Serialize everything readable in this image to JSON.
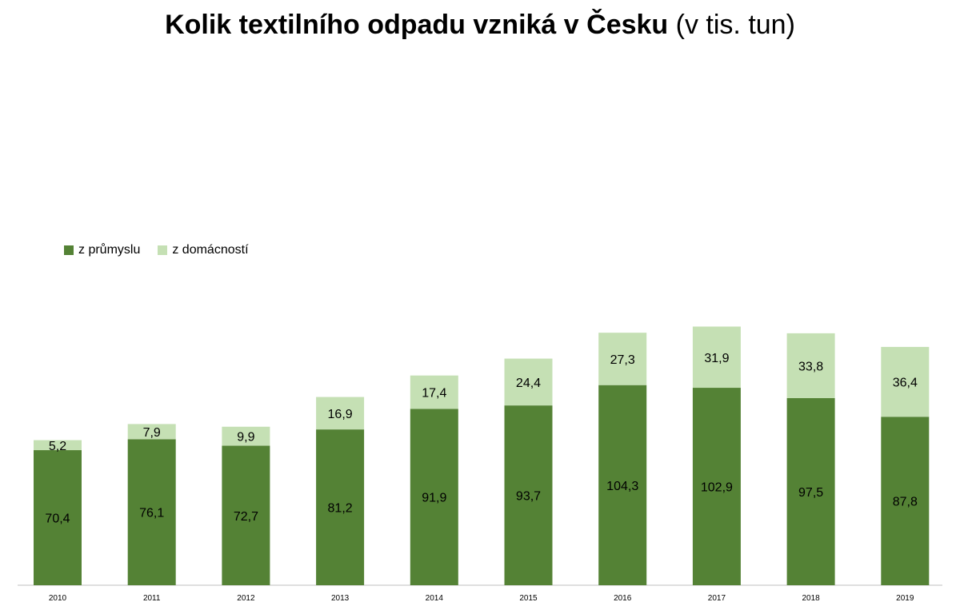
{
  "title_main": "Kolik textilního odpadu vzniká v Česku",
  "title_unit": "(v tis. tun)",
  "colors": {
    "industry": "#548235",
    "households": "#c5e0b4",
    "axis": "#bfbfbf"
  },
  "chart_data": {
    "type": "bar",
    "stacked": true,
    "categories": [
      "2010",
      "2011",
      "2012",
      "2013",
      "2014",
      "2015",
      "2016",
      "2017",
      "2018",
      "2019"
    ],
    "series": [
      {
        "name": "z průmyslu",
        "values": [
          70.4,
          76.1,
          72.7,
          81.2,
          91.9,
          93.7,
          104.3,
          102.9,
          97.5,
          87.8
        ],
        "labels": [
          "70,4",
          "76,1",
          "72,7",
          "81,2",
          "91,9",
          "93,7",
          "104,3",
          "102,9",
          "97,5",
          "87,8"
        ]
      },
      {
        "name": "z domácností",
        "values": [
          5.2,
          7.9,
          9.9,
          16.9,
          17.4,
          24.4,
          27.3,
          31.9,
          33.8,
          36.4
        ],
        "labels": [
          "5,2",
          "7,9",
          "9,9",
          "16,9",
          "17,4",
          "24,4",
          "27,3",
          "31,9",
          "33,8",
          "36,4"
        ]
      }
    ],
    "ylim": [
      0,
      145
    ],
    "legend_position": "left-middle",
    "grid": false
  }
}
